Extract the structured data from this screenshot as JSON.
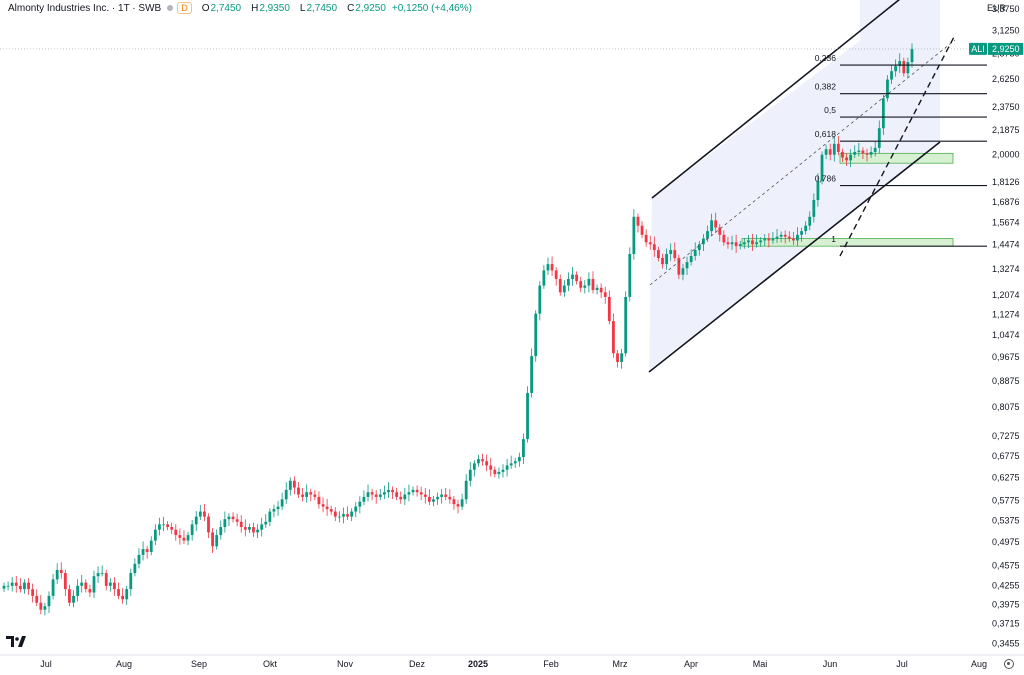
{
  "header": {
    "title": "Almonty Industries Inc. · 1T · SWB",
    "badge": "D",
    "o_label": "O",
    "o_value": "2,7450",
    "h_label": "H",
    "h_value": "2,9350",
    "l_label": "L",
    "l_value": "2,7450",
    "c_label": "C",
    "c_value": "2,9250",
    "change": "+0,1250 (+4,46%)"
  },
  "currency": "EUR",
  "colors": {
    "up": "#089981",
    "down": "#f23645",
    "channel_fill": "#eef1fb",
    "zone_fill": "#d8f0d2",
    "zone_stroke": "#4caf50"
  },
  "icons": {
    "logo": "tradingview-logo-icon",
    "settings": "gear-icon"
  },
  "chart_data": {
    "type": "candlestick",
    "y_scale": "log",
    "ylim": [
      0.33,
      3.85
    ],
    "y_ticks": [
      "3,3750",
      "3,1250",
      "2,8750",
      "2,6250",
      "2,3750",
      "2,1875",
      "2,0000",
      "1,8126",
      "1,6876",
      "1,5674",
      "1,4474",
      "1,3274",
      "1,2074",
      "1,1274",
      "1,0474",
      "0,9675",
      "0,8875",
      "0,8075",
      "0,7275",
      "0,6775",
      "0,6275",
      "0,5775",
      "0,5375",
      "0,4975",
      "0,4575",
      "0,4255",
      "0,3975",
      "0,3715",
      "0,3455"
    ],
    "x_ticks": [
      "Jul",
      "Aug",
      "Sep",
      "Okt",
      "Nov",
      "Dez",
      "2025",
      "Feb",
      "Mrz",
      "Apr",
      "Mai",
      "Jun",
      "Jul",
      "Aug"
    ],
    "last_price": {
      "symbol": "ALI",
      "value": "2,9250"
    },
    "closes": [
      0.425,
      0.425,
      0.43,
      0.425,
      0.42,
      0.43,
      0.42,
      0.41,
      0.4,
      0.39,
      0.395,
      0.41,
      0.435,
      0.45,
      0.445,
      0.42,
      0.4,
      0.41,
      0.425,
      0.43,
      0.42,
      0.415,
      0.44,
      0.445,
      0.445,
      0.425,
      0.43,
      0.42,
      0.41,
      0.405,
      0.42,
      0.445,
      0.46,
      0.475,
      0.485,
      0.48,
      0.5,
      0.52,
      0.53,
      0.53,
      0.525,
      0.52,
      0.51,
      0.505,
      0.5,
      0.51,
      0.53,
      0.545,
      0.555,
      0.545,
      0.515,
      0.49,
      0.51,
      0.525,
      0.54,
      0.545,
      0.54,
      0.535,
      0.525,
      0.52,
      0.525,
      0.515,
      0.52,
      0.53,
      0.535,
      0.555,
      0.56,
      0.565,
      0.58,
      0.6,
      0.62,
      0.605,
      0.59,
      0.585,
      0.595,
      0.59,
      0.585,
      0.57,
      0.565,
      0.56,
      0.555,
      0.545,
      0.545,
      0.55,
      0.545,
      0.555,
      0.565,
      0.575,
      0.585,
      0.595,
      0.59,
      0.585,
      0.59,
      0.595,
      0.6,
      0.595,
      0.585,
      0.58,
      0.59,
      0.595,
      0.6,
      0.595,
      0.59,
      0.585,
      0.575,
      0.58,
      0.585,
      0.59,
      0.585,
      0.58,
      0.57,
      0.565,
      0.58,
      0.62,
      0.645,
      0.66,
      0.67,
      0.665,
      0.655,
      0.645,
      0.635,
      0.64,
      0.645,
      0.655,
      0.66,
      0.665,
      0.675,
      0.72,
      0.85,
      0.97,
      1.13,
      1.25,
      1.32,
      1.35,
      1.32,
      1.28,
      1.22,
      1.25,
      1.28,
      1.3,
      1.27,
      1.24,
      1.25,
      1.28,
      1.23,
      1.24,
      1.22,
      1.2,
      1.1,
      0.98,
      0.95,
      0.98,
      1.2,
      1.4,
      1.6,
      1.55,
      1.5,
      1.46,
      1.45,
      1.42,
      1.38,
      1.35,
      1.4,
      1.42,
      1.38,
      1.3,
      1.33,
      1.36,
      1.39,
      1.42,
      1.45,
      1.48,
      1.52,
      1.58,
      1.54,
      1.5,
      1.46,
      1.45,
      1.46,
      1.44,
      1.45,
      1.46,
      1.47,
      1.45,
      1.46,
      1.47,
      1.48,
      1.47,
      1.48,
      1.49,
      1.5,
      1.49,
      1.48,
      1.47,
      1.5,
      1.52,
      1.55,
      1.6,
      1.7,
      1.82,
      2.0,
      2.04,
      2.0,
      2.08,
      2.02,
      1.98,
      1.96,
      2.0,
      2.02,
      2.03,
      2.01,
      2.0,
      2.02,
      2.05,
      2.2,
      2.45,
      2.62,
      2.7,
      2.75,
      2.8,
      2.68,
      2.79,
      2.925
    ],
    "fibonacci": [
      {
        "level": "0,236",
        "price": 2.76
      },
      {
        "level": "0,382",
        "price": 2.49
      },
      {
        "level": "0,5",
        "price": 2.29
      },
      {
        "level": "0,618",
        "price": 2.1
      },
      {
        "level": "0,786",
        "price": 1.79
      },
      {
        "level": "1",
        "price": 1.44
      }
    ],
    "support_zones": [
      {
        "low": 1.94,
        "high": 2.01
      },
      {
        "low": 1.44,
        "high": 1.48
      }
    ],
    "grid": false
  }
}
